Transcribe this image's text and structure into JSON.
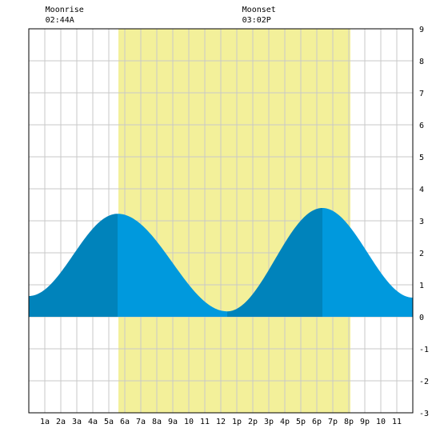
{
  "chart_data": {
    "type": "area",
    "title": "",
    "xlabel": "",
    "ylabel": "",
    "xlim": [
      0,
      24
    ],
    "ylim": [
      -3,
      9
    ],
    "grid": true,
    "x_tick_labels": [
      "1a",
      "2a",
      "3a",
      "4a",
      "5a",
      "6a",
      "7a",
      "8a",
      "9a",
      "10",
      "11",
      "12",
      "1p",
      "2p",
      "3p",
      "4p",
      "5p",
      "6p",
      "7p",
      "8p",
      "9p",
      "10",
      "11"
    ],
    "y_ticks": [
      -3,
      -2,
      -1,
      0,
      1,
      2,
      3,
      4,
      5,
      6,
      7,
      8,
      9
    ],
    "daylight": {
      "start_hour": 5.6,
      "end_hour": 20.1
    },
    "moon_events": [
      {
        "label": "Moonrise",
        "time": "02:44A",
        "hour": 2.733
      },
      {
        "label": "Moonset",
        "time": "03:02P",
        "hour": 15.033
      }
    ],
    "tide_extremes": [
      {
        "hour": 0.0,
        "value": 0.65
      },
      {
        "hour": 5.55,
        "value": 3.22
      },
      {
        "hour": 12.4,
        "value": 0.17
      },
      {
        "hour": 18.35,
        "value": 3.4
      },
      {
        "hour": 24.0,
        "value": 0.6
      }
    ],
    "colors": {
      "daylight": "#f3f09a",
      "tide_light": "#0099dd",
      "tide_dark": "#0083bb",
      "grid": "#c8c8c8",
      "axis": "#000000"
    }
  }
}
